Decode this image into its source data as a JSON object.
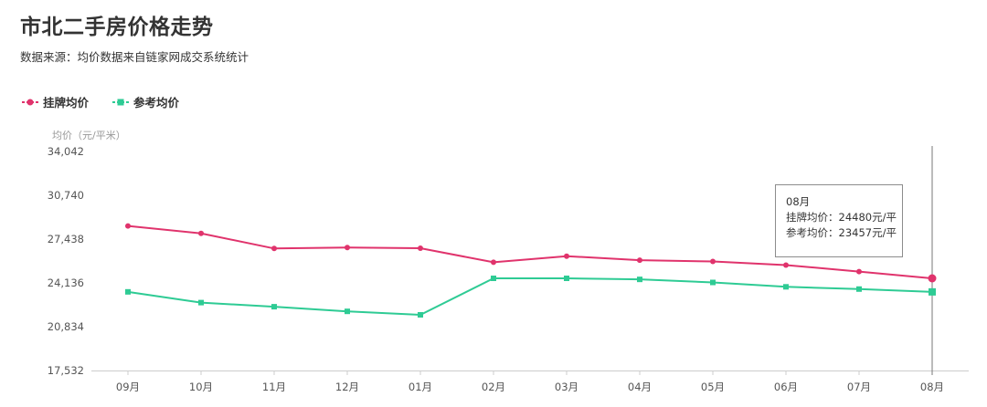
{
  "header": {
    "title": "市北二手房价格走势",
    "subtitle": "数据来源：均价数据来自链家网成交系统统计"
  },
  "tooltip": {
    "month": "08月",
    "line1": "挂牌均价：24480元/平",
    "line2": "参考均价：23457元/平"
  },
  "chart_data": {
    "type": "line",
    "title": "市北二手房价格走势",
    "ylabel": "均价（元/平米）",
    "categories": [
      "09月",
      "10月",
      "11月",
      "12月",
      "01月",
      "02月",
      "03月",
      "04月",
      "05月",
      "06月",
      "07月",
      "08月"
    ],
    "ylim": [
      17532,
      34042
    ],
    "yticks": [
      17532,
      20834,
      24136,
      27438,
      30740,
      34042
    ],
    "ytick_labels": [
      "17,532",
      "20,834",
      "24,136",
      "27,438",
      "30,740",
      "34,042"
    ],
    "legend_position": "top-left",
    "series": [
      {
        "name": "挂牌均价",
        "color": "#e0336c",
        "marker": "circle",
        "values": [
          28430,
          27870,
          26730,
          26800,
          26750,
          25690,
          26150,
          25850,
          25750,
          25480,
          24990,
          24480
        ]
      },
      {
        "name": "参考均价",
        "color": "#2ecb94",
        "marker": "square",
        "values": [
          23460,
          22650,
          22340,
          21990,
          21730,
          24480,
          24480,
          24400,
          24170,
          23840,
          23670,
          23457
        ]
      }
    ]
  }
}
